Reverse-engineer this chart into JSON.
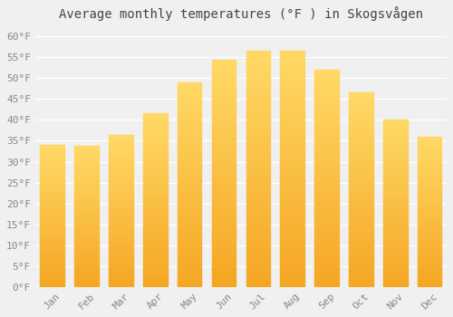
{
  "title": "Average monthly temperatures (°F ) in Skogsvågen",
  "months": [
    "Jan",
    "Feb",
    "Mar",
    "Apr",
    "May",
    "Jun",
    "Jul",
    "Aug",
    "Sep",
    "Oct",
    "Nov",
    "Dec"
  ],
  "values": [
    34.0,
    33.8,
    36.5,
    41.5,
    49.0,
    54.5,
    56.5,
    56.5,
    52.0,
    46.5,
    40.0,
    36.0
  ],
  "bar_color_bottom": "#F5A623",
  "bar_color_top": "#FFD966",
  "ylim": [
    0,
    62
  ],
  "yticks": [
    0,
    5,
    10,
    15,
    20,
    25,
    30,
    35,
    40,
    45,
    50,
    55,
    60
  ],
  "ylabel_suffix": "°F",
  "background_color": "#f0f0f0",
  "grid_color": "#ffffff",
  "title_fontsize": 10,
  "tick_fontsize": 8,
  "bar_width": 0.7
}
